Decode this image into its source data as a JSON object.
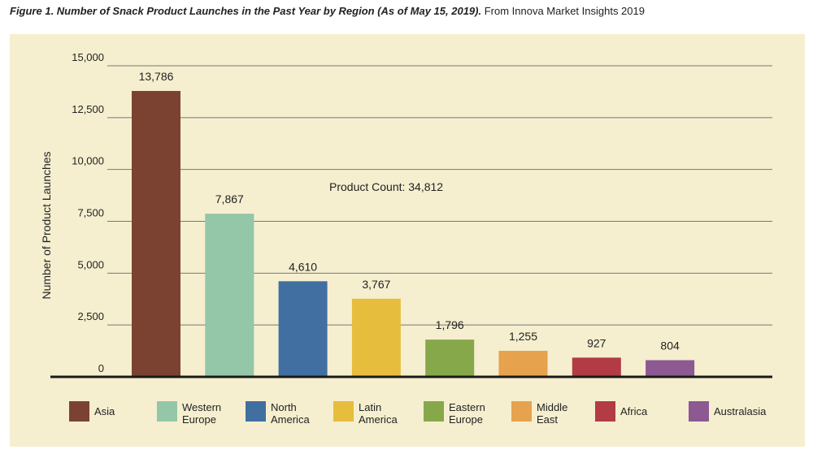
{
  "caption": {
    "figure": "Figure 1. Number of Snack Product Launches in the Past Year by Region (As of May 15, 2019).",
    "source": " From Innova Market Insights 2019"
  },
  "chart_data": {
    "type": "bar",
    "categories": [
      "Asia",
      "Western Europe",
      "North America",
      "Latin America",
      "Eastern Europe",
      "Middle East",
      "Africa",
      "Australasia"
    ],
    "legend_labels": [
      "Asia",
      "Western\nEurope",
      "North\nAmerica",
      "Latin\nAmerica",
      "Eastern\nEurope",
      "Middle\nEast",
      "Africa",
      "Australasia"
    ],
    "values": [
      13786,
      7867,
      4610,
      3767,
      1796,
      1255,
      927,
      804
    ],
    "data_labels": [
      "13,786",
      "7,867",
      "4,610",
      "3,767",
      "1,796",
      "1,255",
      "927",
      "804"
    ],
    "colors": [
      "#7b4232",
      "#94c6a8",
      "#416fa2",
      "#e7bd3e",
      "#86a84b",
      "#e6a24d",
      "#b23b46",
      "#8c5993"
    ],
    "ylabel": "Number of Product Launches",
    "ylim": [
      0,
      15000
    ],
    "yticks": [
      0,
      2500,
      5000,
      7500,
      10000,
      12500,
      15000
    ],
    "ytick_labels": [
      "0",
      "2,500",
      "5,000",
      "7,500",
      "10,000",
      "12,500",
      "15,000"
    ],
    "annotation": "Product Count: 34,812",
    "grid": true,
    "legend_position": "bottom"
  }
}
